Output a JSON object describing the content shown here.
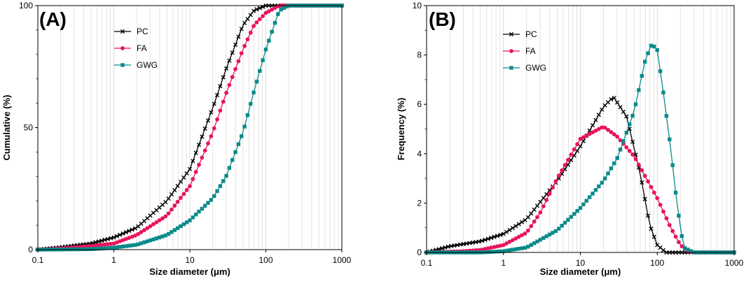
{
  "panels": [
    {
      "panel_label": "(A)",
      "ylabel": "Cumulative (%)",
      "xlabel": "Size diameter (μm)",
      "xticks": [
        "0.1",
        "1",
        "10",
        "100",
        "1000"
      ],
      "yticks": [
        "0",
        "50",
        "100"
      ]
    },
    {
      "panel_label": "(B)",
      "ylabel": "Frequency (%)",
      "xlabel": "Size diameter (μm)",
      "xticks": [
        "0.1",
        "1",
        "10",
        "100",
        "1000"
      ],
      "yticks": [
        "0",
        "2",
        "4",
        "6",
        "8",
        "10"
      ]
    }
  ],
  "colors": {
    "PC": "#000000",
    "FA": "#e8145e",
    "GWG": "#0b8a8a"
  },
  "chart_data": [
    {
      "type": "line",
      "title": "(A)",
      "xlabel": "Size diameter (μm)",
      "ylabel": "Cumulative (%)",
      "xscale": "log",
      "xlim": [
        0.1,
        1000
      ],
      "ylim": [
        0,
        100
      ],
      "grid": "vertical minor log lines",
      "legend": "top-left",
      "series": [
        {
          "name": "PC",
          "marker": "x",
          "x": [
            0.1,
            0.2,
            0.5,
            1,
            2,
            5,
            10,
            20,
            30,
            50,
            70,
            100,
            150,
            200,
            1000
          ],
          "values": [
            0,
            1,
            2.5,
            5,
            9,
            20,
            33,
            58,
            74,
            92,
            98,
            100,
            100,
            100,
            100
          ]
        },
        {
          "name": "FA",
          "marker": "circle",
          "x": [
            0.1,
            0.2,
            0.5,
            1,
            2,
            5,
            10,
            20,
            30,
            50,
            70,
            100,
            150,
            200,
            1000
          ],
          "values": [
            0,
            0.5,
            1.5,
            2.5,
            6,
            14,
            26,
            48,
            64,
            82,
            92,
            97,
            100,
            100,
            100
          ]
        },
        {
          "name": "GWG",
          "marker": "square",
          "x": [
            0.1,
            0.5,
            1,
            2,
            5,
            10,
            20,
            30,
            50,
            70,
            100,
            150,
            200,
            300,
            1000
          ],
          "values": [
            0,
            0.2,
            0.8,
            2,
            6,
            12,
            21,
            30,
            48,
            65,
            82,
            98,
            100,
            100,
            100
          ]
        }
      ]
    },
    {
      "type": "line",
      "title": "(B)",
      "xlabel": "Size diameter (μm)",
      "ylabel": "Frequency (%)",
      "xscale": "log",
      "xlim": [
        0.1,
        1000
      ],
      "ylim": [
        0,
        10
      ],
      "grid": "vertical minor log lines",
      "legend": "top-left",
      "series": [
        {
          "name": "PC",
          "marker": "x",
          "x": [
            0.1,
            0.2,
            0.5,
            1,
            2,
            5,
            10,
            20,
            27,
            40,
            60,
            80,
            100,
            130,
            1000
          ],
          "values": [
            0,
            0.25,
            0.45,
            0.75,
            1.35,
            2.9,
            4.3,
            5.9,
            6.3,
            5.5,
            3.2,
            1.1,
            0.3,
            0,
            0
          ]
        },
        {
          "name": "FA",
          "marker": "circle",
          "x": [
            0.1,
            0.3,
            0.5,
            1,
            2,
            3,
            5,
            10,
            20,
            30,
            50,
            100,
            150,
            200,
            250,
            300,
            1000
          ],
          "values": [
            0,
            0.05,
            0.1,
            0.3,
            0.8,
            1.6,
            3.0,
            4.6,
            5.1,
            4.7,
            3.9,
            2.2,
            1.0,
            0.3,
            0.05,
            0,
            0
          ]
        },
        {
          "name": "GWG",
          "marker": "square",
          "x": [
            0.1,
            0.5,
            1,
            2,
            5,
            10,
            20,
            30,
            50,
            70,
            85,
            100,
            120,
            150,
            180,
            220,
            300,
            1000
          ],
          "values": [
            0,
            0,
            0.05,
            0.2,
            0.9,
            1.8,
            2.9,
            3.8,
            5.7,
            7.8,
            8.45,
            8.2,
            6.5,
            4.2,
            2.0,
            0.2,
            0,
            0
          ]
        }
      ]
    }
  ]
}
